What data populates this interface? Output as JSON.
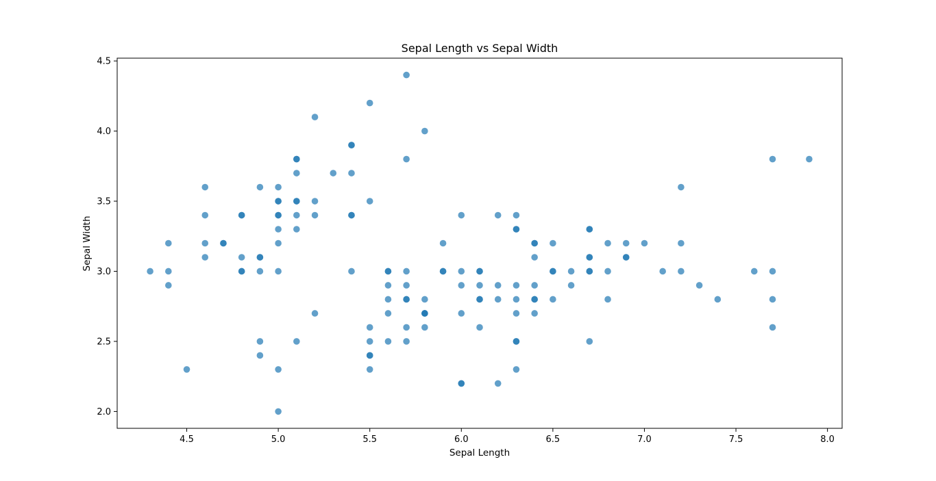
{
  "chart_data": {
    "type": "scatter",
    "title": "Sepal Length vs Sepal Width",
    "xlabel": "Sepal Length",
    "ylabel": "Sepal Width",
    "xlim": [
      4.12,
      8.08
    ],
    "ylim": [
      1.88,
      4.52
    ],
    "xticks": [
      "4.5",
      "5.0",
      "5.5",
      "6.0",
      "6.5",
      "7.0",
      "7.5",
      "8.0"
    ],
    "yticks": [
      "2.0",
      "2.5",
      "3.0",
      "3.5",
      "4.0",
      "4.5"
    ],
    "grid": false,
    "marker_color": "#1f77b4",
    "marker_alpha": 0.7,
    "points": [
      [
        4.3,
        3.0
      ],
      [
        4.4,
        3.2
      ],
      [
        4.4,
        3.0
      ],
      [
        4.4,
        2.9
      ],
      [
        4.5,
        2.3
      ],
      [
        4.6,
        3.6
      ],
      [
        4.6,
        3.4
      ],
      [
        4.6,
        3.2
      ],
      [
        4.6,
        3.1
      ],
      [
        4.7,
        3.2
      ],
      [
        4.7,
        3.2
      ],
      [
        4.8,
        3.4
      ],
      [
        4.8,
        3.4
      ],
      [
        4.8,
        3.1
      ],
      [
        4.8,
        3.0
      ],
      [
        4.8,
        3.0
      ],
      [
        4.9,
        3.6
      ],
      [
        4.9,
        3.1
      ],
      [
        4.9,
        3.1
      ],
      [
        4.9,
        3.0
      ],
      [
        4.9,
        2.5
      ],
      [
        4.9,
        2.4
      ],
      [
        5.0,
        3.6
      ],
      [
        5.0,
        3.5
      ],
      [
        5.0,
        3.5
      ],
      [
        5.0,
        3.4
      ],
      [
        5.0,
        3.4
      ],
      [
        5.0,
        3.3
      ],
      [
        5.0,
        3.2
      ],
      [
        5.0,
        3.0
      ],
      [
        5.0,
        2.3
      ],
      [
        5.0,
        2.0
      ],
      [
        5.1,
        3.8
      ],
      [
        5.1,
        3.8
      ],
      [
        5.1,
        3.7
      ],
      [
        5.1,
        3.5
      ],
      [
        5.1,
        3.5
      ],
      [
        5.1,
        3.4
      ],
      [
        5.1,
        3.3
      ],
      [
        5.1,
        2.5
      ],
      [
        5.2,
        4.1
      ],
      [
        5.2,
        3.5
      ],
      [
        5.2,
        3.4
      ],
      [
        5.2,
        2.7
      ],
      [
        5.3,
        3.7
      ],
      [
        5.4,
        3.9
      ],
      [
        5.4,
        3.9
      ],
      [
        5.4,
        3.7
      ],
      [
        5.4,
        3.4
      ],
      [
        5.4,
        3.4
      ],
      [
        5.4,
        3.0
      ],
      [
        5.5,
        4.2
      ],
      [
        5.5,
        3.5
      ],
      [
        5.5,
        2.6
      ],
      [
        5.5,
        2.5
      ],
      [
        5.5,
        2.4
      ],
      [
        5.5,
        2.4
      ],
      [
        5.5,
        2.3
      ],
      [
        5.6,
        3.0
      ],
      [
        5.6,
        3.0
      ],
      [
        5.6,
        2.9
      ],
      [
        5.6,
        2.8
      ],
      [
        5.6,
        2.7
      ],
      [
        5.6,
        2.5
      ],
      [
        5.7,
        4.4
      ],
      [
        5.7,
        3.8
      ],
      [
        5.7,
        3.0
      ],
      [
        5.7,
        2.9
      ],
      [
        5.7,
        2.8
      ],
      [
        5.7,
        2.8
      ],
      [
        5.7,
        2.6
      ],
      [
        5.7,
        2.5
      ],
      [
        5.8,
        4.0
      ],
      [
        5.8,
        2.8
      ],
      [
        5.8,
        2.7
      ],
      [
        5.8,
        2.7
      ],
      [
        5.8,
        2.7
      ],
      [
        5.8,
        2.6
      ],
      [
        5.9,
        3.2
      ],
      [
        5.9,
        3.0
      ],
      [
        5.9,
        3.0
      ],
      [
        6.0,
        3.4
      ],
      [
        6.0,
        3.0
      ],
      [
        6.0,
        2.9
      ],
      [
        6.0,
        2.7
      ],
      [
        6.0,
        2.2
      ],
      [
        6.0,
        2.2
      ],
      [
        6.1,
        3.0
      ],
      [
        6.1,
        3.0
      ],
      [
        6.1,
        2.9
      ],
      [
        6.1,
        2.8
      ],
      [
        6.1,
        2.8
      ],
      [
        6.1,
        2.6
      ],
      [
        6.2,
        3.4
      ],
      [
        6.2,
        2.9
      ],
      [
        6.2,
        2.8
      ],
      [
        6.2,
        2.2
      ],
      [
        6.3,
        3.4
      ],
      [
        6.3,
        3.3
      ],
      [
        6.3,
        3.3
      ],
      [
        6.3,
        2.9
      ],
      [
        6.3,
        2.8
      ],
      [
        6.3,
        2.7
      ],
      [
        6.3,
        2.5
      ],
      [
        6.3,
        2.5
      ],
      [
        6.3,
        2.3
      ],
      [
        6.4,
        3.2
      ],
      [
        6.4,
        3.2
      ],
      [
        6.4,
        3.1
      ],
      [
        6.4,
        2.9
      ],
      [
        6.4,
        2.8
      ],
      [
        6.4,
        2.8
      ],
      [
        6.4,
        2.7
      ],
      [
        6.5,
        3.2
      ],
      [
        6.5,
        3.0
      ],
      [
        6.5,
        3.0
      ],
      [
        6.5,
        2.8
      ],
      [
        6.6,
        3.0
      ],
      [
        6.6,
        2.9
      ],
      [
        6.7,
        3.3
      ],
      [
        6.7,
        3.3
      ],
      [
        6.7,
        3.1
      ],
      [
        6.7,
        3.1
      ],
      [
        6.7,
        3.0
      ],
      [
        6.7,
        3.0
      ],
      [
        6.7,
        2.5
      ],
      [
        6.8,
        3.2
      ],
      [
        6.8,
        3.0
      ],
      [
        6.8,
        2.8
      ],
      [
        6.9,
        3.2
      ],
      [
        6.9,
        3.1
      ],
      [
        6.9,
        3.1
      ],
      [
        7.0,
        3.2
      ],
      [
        7.1,
        3.0
      ],
      [
        7.2,
        3.6
      ],
      [
        7.2,
        3.2
      ],
      [
        7.2,
        3.0
      ],
      [
        7.3,
        2.9
      ],
      [
        7.4,
        2.8
      ],
      [
        7.6,
        3.0
      ],
      [
        7.7,
        3.8
      ],
      [
        7.7,
        3.0
      ],
      [
        7.7,
        2.8
      ],
      [
        7.7,
        2.6
      ],
      [
        7.9,
        3.8
      ]
    ]
  }
}
